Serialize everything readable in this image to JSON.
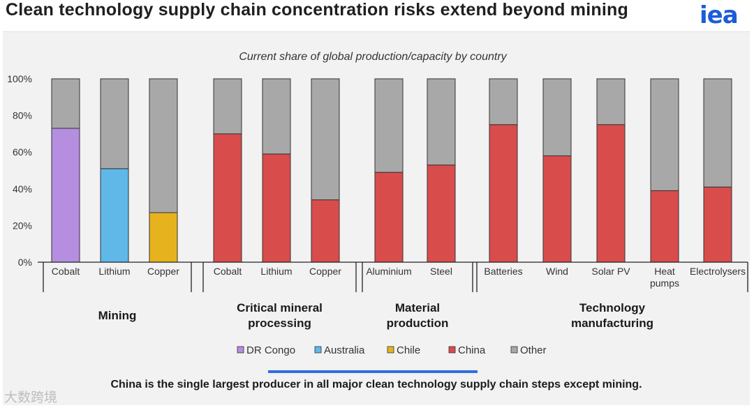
{
  "title": "Clean technology supply chain concentration risks extend beyond mining",
  "logo": "iea",
  "footer": "China is the single largest producer in all major clean technology supply chain steps except mining.",
  "watermark": "大数跨境",
  "chart_data": {
    "type": "bar",
    "stacked": true,
    "title": "Current share of global production/capacity by country",
    "ylim": [
      0,
      100
    ],
    "yticks": [
      "0%",
      "20%",
      "40%",
      "60%",
      "80%",
      "100%"
    ],
    "groups": [
      {
        "label_lines": [
          "Mining"
        ],
        "categories": [
          [
            "Cobalt"
          ],
          [
            "Lithium"
          ],
          [
            "Copper"
          ]
        ]
      },
      {
        "label_lines": [
          "Critical mineral",
          "processing"
        ],
        "categories": [
          [
            "Cobalt"
          ],
          [
            "Lithium"
          ],
          [
            "Copper"
          ]
        ]
      },
      {
        "label_lines": [
          "Material",
          "production"
        ],
        "categories": [
          [
            "Aluminium"
          ],
          [
            "Steel"
          ]
        ]
      },
      {
        "label_lines": [
          "Technology",
          "manufacturing"
        ],
        "categories": [
          [
            "Batteries"
          ],
          [
            "Wind"
          ],
          [
            "Solar PV"
          ],
          [
            "Heat",
            "pumps"
          ],
          [
            "Electrolysers"
          ]
        ]
      }
    ],
    "series": [
      {
        "name": "DR Congo",
        "color": "#b58ee0",
        "values": [
          73,
          0,
          0,
          0,
          0,
          0,
          0,
          0,
          0,
          0,
          0,
          0,
          0
        ]
      },
      {
        "name": "Australia",
        "color": "#5fb8e8",
        "values": [
          0,
          51,
          0,
          0,
          0,
          0,
          0,
          0,
          0,
          0,
          0,
          0,
          0
        ]
      },
      {
        "name": "Chile",
        "color": "#e6b21e",
        "values": [
          0,
          0,
          27,
          0,
          0,
          0,
          0,
          0,
          0,
          0,
          0,
          0,
          0
        ]
      },
      {
        "name": "China",
        "color": "#d94c4c",
        "values": [
          0,
          0,
          0,
          70,
          59,
          34,
          49,
          53,
          75,
          58,
          75,
          39,
          41
        ]
      },
      {
        "name": "Other",
        "color": "#a8a8a8",
        "values": [
          27,
          49,
          73,
          30,
          41,
          66,
          51,
          47,
          25,
          42,
          25,
          61,
          59
        ]
      }
    ]
  }
}
